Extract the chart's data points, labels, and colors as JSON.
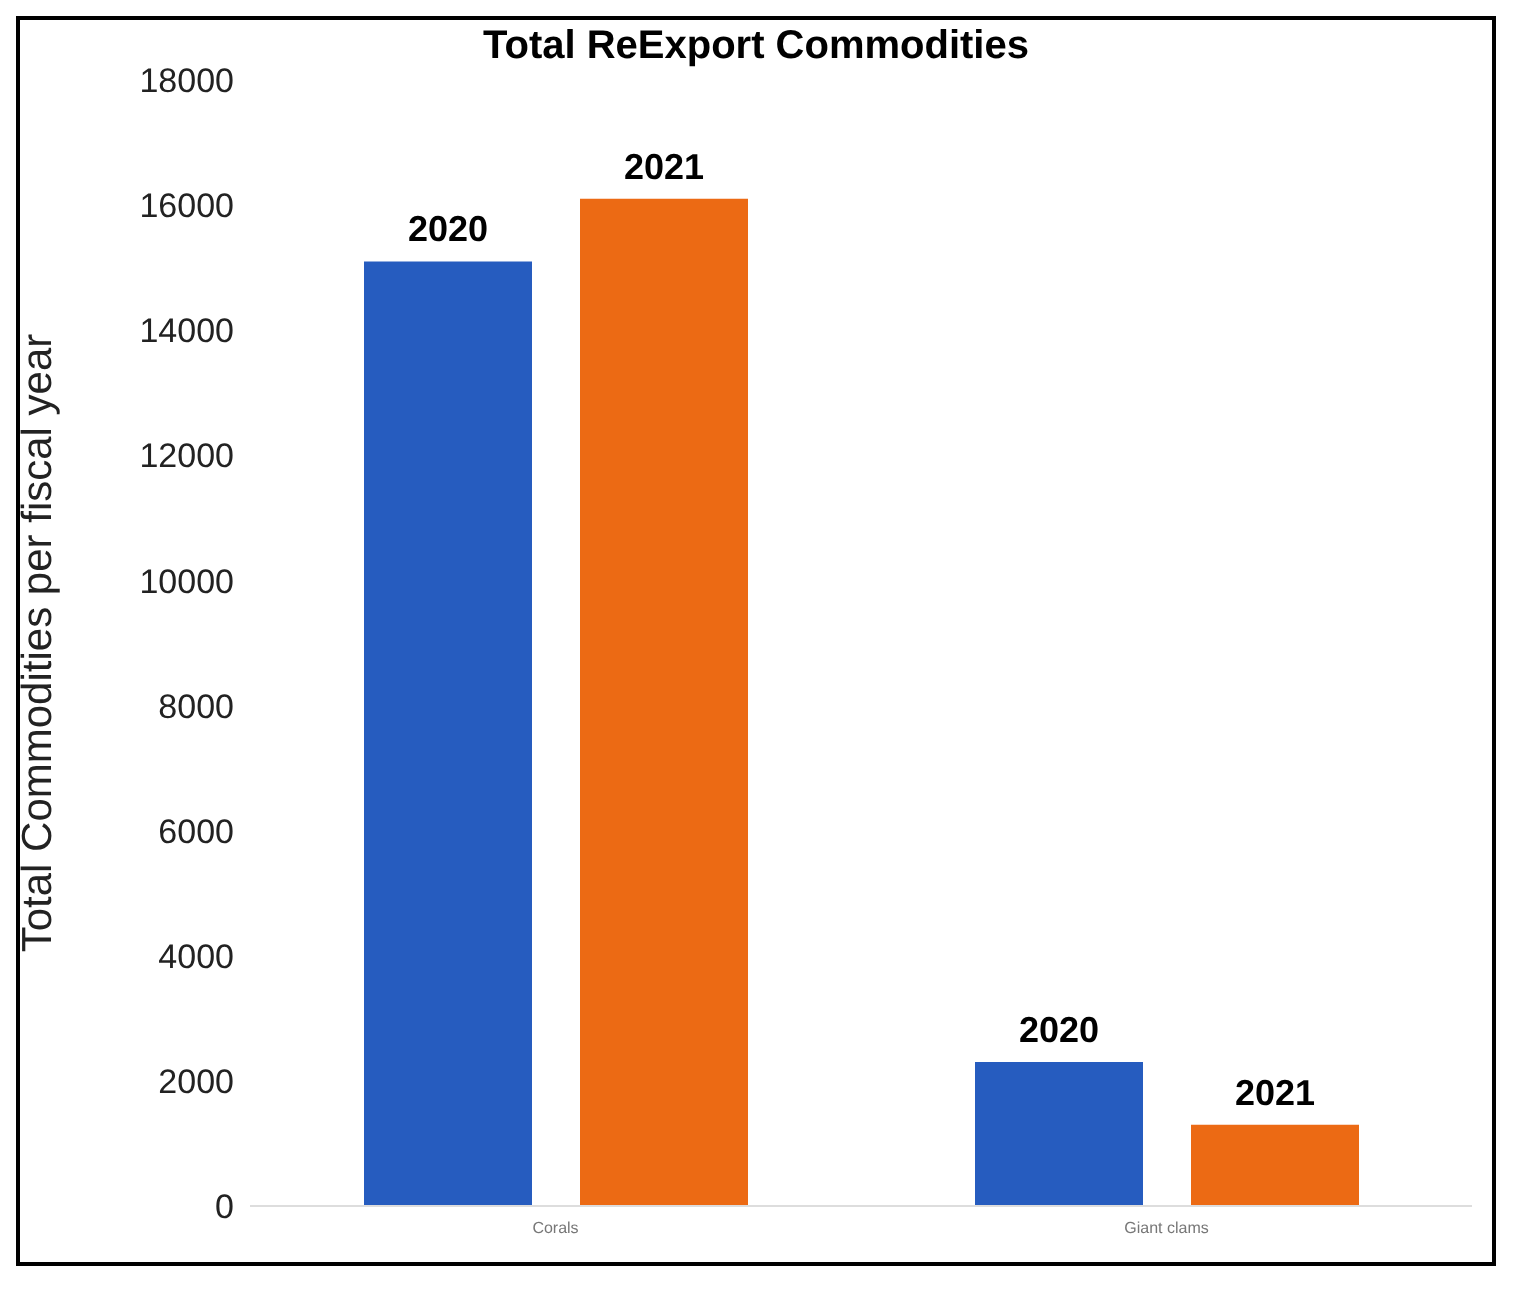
{
  "chart_data": {
    "type": "bar",
    "title": "Total ReExport Commodities",
    "ylabel": "Total Commodities per fiscal year",
    "categories": [
      "Corals",
      "Giant clams"
    ],
    "series": [
      {
        "name": "2020",
        "color": "#265cbf",
        "values": [
          15100,
          2300
        ]
      },
      {
        "name": "2021",
        "color": "#ec6a14",
        "values": [
          16100,
          1300
        ]
      }
    ],
    "ylim": [
      0,
      18000
    ],
    "yticks": [
      0,
      2000,
      4000,
      6000,
      8000,
      10000,
      12000,
      14000,
      16000,
      18000
    ],
    "grid": false,
    "legend": false
  }
}
